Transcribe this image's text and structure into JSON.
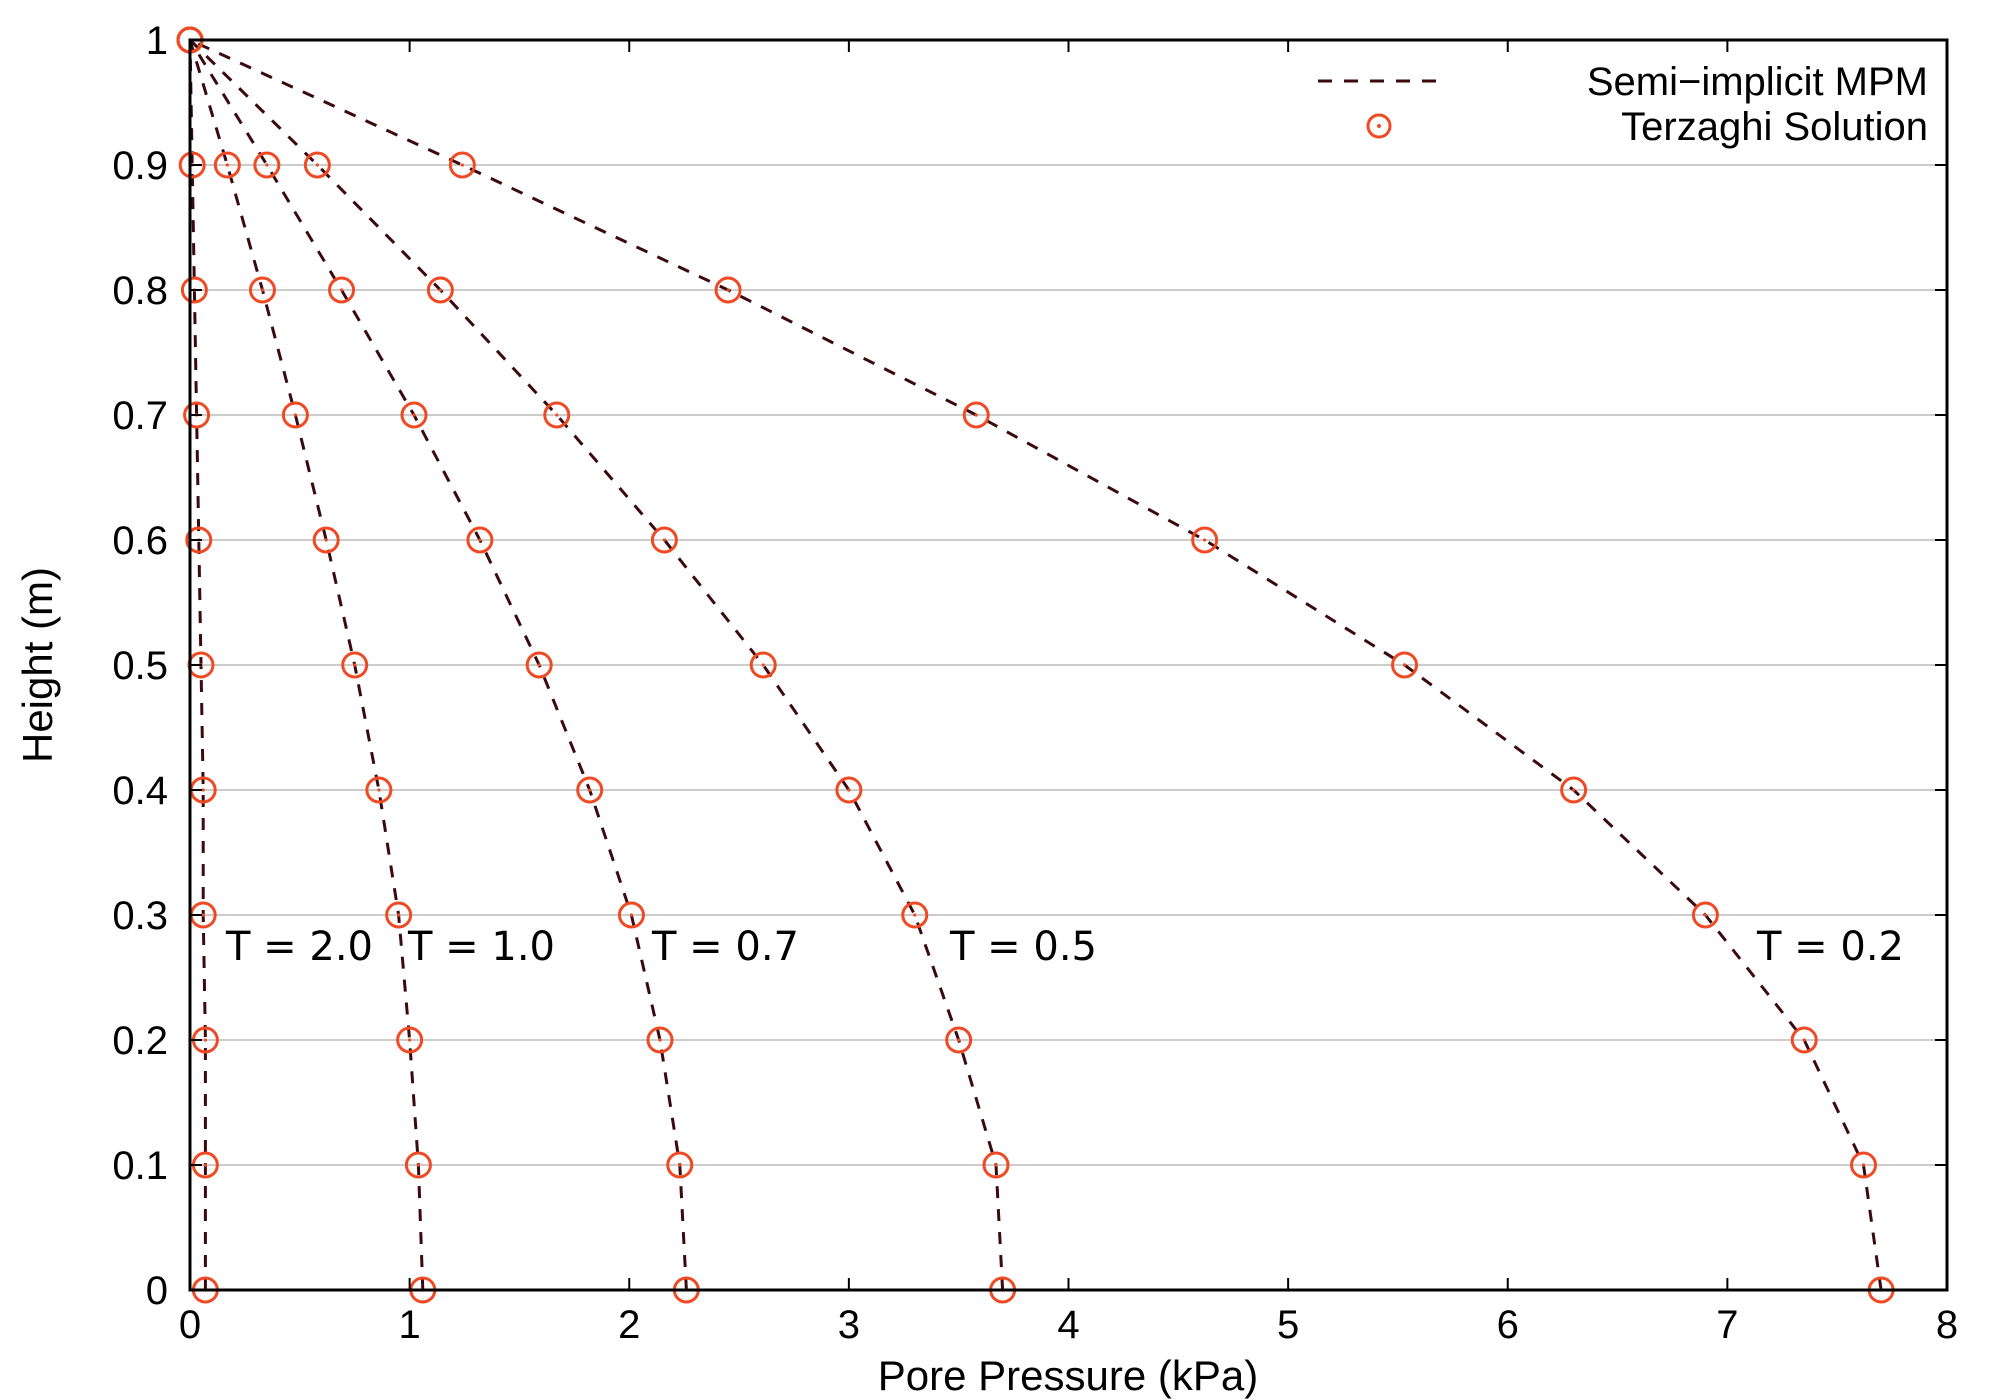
{
  "chart_data": {
    "type": "line",
    "title": "",
    "xlabel": "Pore Pressure (kPa)",
    "ylabel": "Height (m)",
    "xlim": [
      0,
      8
    ],
    "ylim": [
      0,
      1
    ],
    "xticks": [
      "0",
      "1",
      "2",
      "3",
      "4",
      "5",
      "6",
      "7",
      "8"
    ],
    "yticks": [
      "0",
      "0.1",
      "0.2",
      "0.3",
      "0.4",
      "0.5",
      "0.6",
      "0.7",
      "0.8",
      "0.9",
      "1"
    ],
    "grid": "horizontal",
    "legend_position": "top-right",
    "legend": [
      {
        "label": "Semi−implicit MPM",
        "style": "dashed-line",
        "color": "#3b0a0f"
      },
      {
        "label": "Terzaghi Solution",
        "style": "open-circle",
        "color": "#f04a24"
      }
    ],
    "y": [
      0,
      0.1,
      0.2,
      0.3,
      0.4,
      0.5,
      0.6,
      0.7,
      0.8,
      0.9,
      1.0
    ],
    "series": [
      {
        "label": "T = 0.2",
        "x": [
          7.7,
          7.62,
          7.35,
          6.9,
          6.3,
          5.53,
          4.62,
          3.58,
          2.45,
          1.24,
          0.0
        ]
      },
      {
        "label": "T = 0.5",
        "x": [
          3.7,
          3.67,
          3.5,
          3.3,
          3.0,
          2.61,
          2.16,
          1.67,
          1.14,
          0.58,
          0.0
        ]
      },
      {
        "label": "T = 0.7",
        "x": [
          2.26,
          2.23,
          2.14,
          2.01,
          1.82,
          1.59,
          1.32,
          1.02,
          0.69,
          0.35,
          0.0
        ]
      },
      {
        "label": "T = 1.0",
        "x": [
          1.06,
          1.04,
          1.0,
          0.95,
          0.86,
          0.75,
          0.62,
          0.48,
          0.33,
          0.17,
          0.0
        ]
      },
      {
        "label": "T = 2.0",
        "x": [
          0.07,
          0.07,
          0.07,
          0.06,
          0.06,
          0.05,
          0.04,
          0.03,
          0.02,
          0.01,
          0.0
        ]
      }
    ]
  },
  "colors": {
    "line": "#3b0a0f",
    "marker": "#f04a24",
    "grid": "#bbbbbb",
    "axis": "#000000"
  }
}
